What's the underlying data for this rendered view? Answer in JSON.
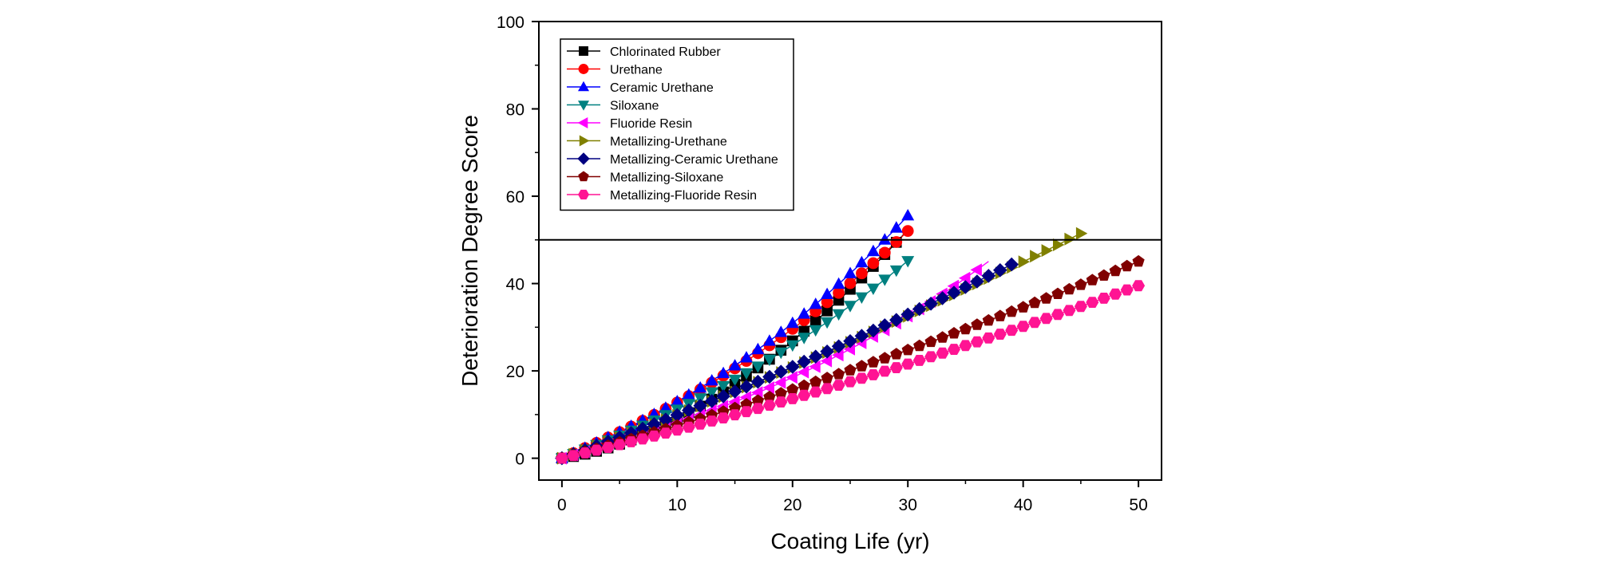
{
  "chart_data": {
    "type": "scatter",
    "title": "",
    "xlabel": "Coating Life (yr)",
    "ylabel": "Deterioration Degree Score",
    "xlim": [
      -2,
      52
    ],
    "ylim": [
      -5,
      100
    ],
    "xticks": [
      0,
      10,
      20,
      30,
      40,
      50
    ],
    "yticks": [
      0,
      20,
      40,
      60,
      80,
      100
    ],
    "xtick_labels": [
      "0",
      "10",
      "20",
      "30",
      "40",
      "50"
    ],
    "ytick_labels": [
      "0",
      "20",
      "40",
      "60",
      "80",
      "100"
    ],
    "reference_line": {
      "y": 50
    },
    "legend_position": "top-left",
    "series": [
      {
        "name": "Chlorinated Rubber",
        "color": "#000000",
        "marker": "square",
        "a": 0.3,
        "b": 0.095,
        "c": 1.8,
        "x_end": 29,
        "curve_end": 30
      },
      {
        "name": "Urethane",
        "color": "#ff0000",
        "marker": "circle",
        "a": 1.15,
        "b": 0.005,
        "c": 2.4,
        "x_end": 30
      },
      {
        "name": "Ceramic Urethane",
        "color": "#0000ff",
        "marker": "triangle-up",
        "a": 1.15,
        "b": 0.0058,
        "c": 2.41,
        "x_end": 30
      },
      {
        "name": "Siloxane",
        "color": "#008080",
        "marker": "triangle-down",
        "a": 1.0,
        "b": 0.0055,
        "c": 2.33,
        "x_end": 30
      },
      {
        "name": "Fluoride Resin",
        "color": "#ff00ff",
        "marker": "triangle-left",
        "a": 0.75,
        "b": 0.00145,
        "c": 2.6,
        "x_end": 36,
        "curve_end": 37
      },
      {
        "name": "Metallizing-Urethane",
        "color": "#808000",
        "marker": "triangle-right",
        "a": 0.9,
        "b": 0.017,
        "c": 1.7,
        "x_end": 45
      },
      {
        "name": "Metallizing-Ceramic Urethane",
        "color": "#000080",
        "marker": "diamond",
        "a": 0.9,
        "b": 0.017,
        "c": 1.72,
        "x_end": 39
      },
      {
        "name": "Metallizing-Siloxane",
        "color": "#800000",
        "marker": "pentagon",
        "a": 0.7,
        "b": 0.0055,
        "c": 1.92,
        "x_end": 50
      },
      {
        "name": "Metallizing-Fluoride Resin",
        "color": "#ff1493",
        "marker": "hexagon",
        "a": 0.6,
        "b": 0.0052,
        "c": 1.92,
        "x_end": 50
      }
    ]
  }
}
